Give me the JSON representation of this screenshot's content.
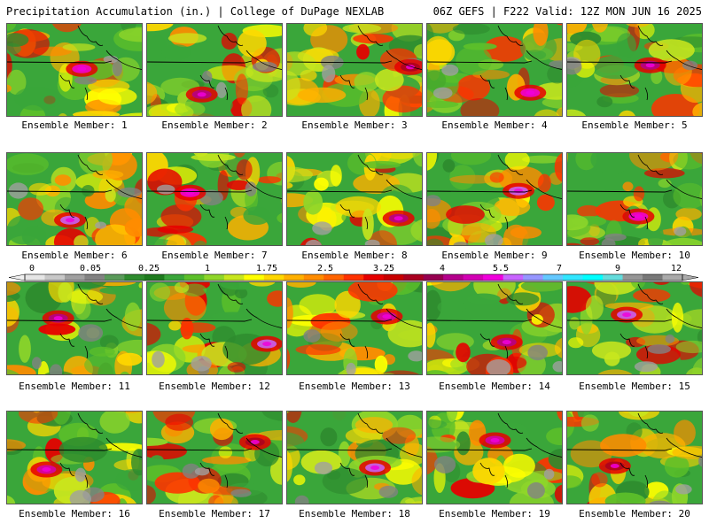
{
  "header": {
    "left": "Precipitation Accumulation (in.) | College of DuPage NEXLAB",
    "right": "06Z GEFS | F222 Valid: 12Z MON JUN 16 2025"
  },
  "member_label_prefix": "Ensemble Member:",
  "members": [
    {
      "id": 1,
      "label": "Ensemble Member: 1"
    },
    {
      "id": 2,
      "label": "Ensemble Member: 2"
    },
    {
      "id": 3,
      "label": "Ensemble Member: 3"
    },
    {
      "id": 4,
      "label": "Ensemble Member: 4"
    },
    {
      "id": 5,
      "label": "Ensemble Member: 5"
    },
    {
      "id": 6,
      "label": "Ensemble Member: 6"
    },
    {
      "id": 7,
      "label": "Ensemble Member: 7"
    },
    {
      "id": 8,
      "label": "Ensemble Member: 8"
    },
    {
      "id": 9,
      "label": "Ensemble Member: 9"
    },
    {
      "id": 10,
      "label": "Ensemble Member: 10"
    },
    {
      "id": 11,
      "label": "Ensemble Member: 11"
    },
    {
      "id": 12,
      "label": "Ensemble Member: 12"
    },
    {
      "id": 13,
      "label": "Ensemble Member: 13"
    },
    {
      "id": 14,
      "label": "Ensemble Member: 14"
    },
    {
      "id": 15,
      "label": "Ensemble Member: 15"
    },
    {
      "id": 16,
      "label": "Ensemble Member: 16"
    },
    {
      "id": 17,
      "label": "Ensemble Member: 17"
    },
    {
      "id": 18,
      "label": "Ensemble Member: 18"
    },
    {
      "id": 19,
      "label": "Ensemble Member: 19"
    },
    {
      "id": 20,
      "label": "Ensemble Member: 20"
    }
  ],
  "colorbar": {
    "labels": [
      "0",
      "0.05",
      "0.25",
      "1",
      "1.75",
      "2.5",
      "3.25",
      "4",
      "5.5",
      "7",
      "9",
      "12"
    ],
    "colors": [
      "#e6e6e6",
      "#c8c8c8",
      "#a0a0a0",
      "#828282",
      "#5a9a5a",
      "#2e8b2e",
      "#1e7a1e",
      "#3aa63a",
      "#5cbf2a",
      "#8fd62a",
      "#c8e61e",
      "#ffff00",
      "#ffd700",
      "#ffb000",
      "#ff8c00",
      "#ff6400",
      "#ff3200",
      "#e60000",
      "#c80000",
      "#aa0020",
      "#960050",
      "#b4008c",
      "#d200b4",
      "#f000dc",
      "#c864ff",
      "#9696ff",
      "#64c8ff",
      "#32e6ff",
      "#00ffff",
      "#64dcdc",
      "#969696",
      "#787878",
      "#aaaaaa"
    ]
  }
}
